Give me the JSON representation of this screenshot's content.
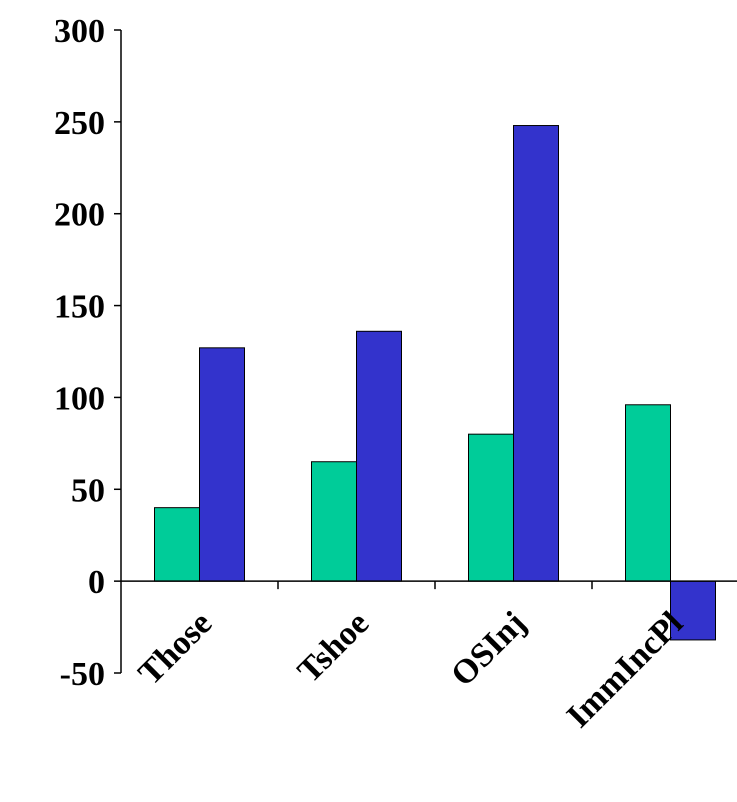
{
  "chart_data": {
    "type": "bar",
    "title": "",
    "xlabel": "",
    "ylabel": "",
    "categories": [
      "Those",
      "Tshoe",
      "OSInj",
      "ImmIncPl"
    ],
    "series": [
      {
        "color": "#00cc99",
        "values": [
          40,
          65,
          80,
          96
        ]
      },
      {
        "color": "#3333cc",
        "values": [
          127,
          136,
          248,
          -32
        ]
      }
    ],
    "ylim": [
      -50,
      300
    ],
    "yticks": [
      300,
      250,
      200,
      150,
      100,
      50,
      0,
      -50
    ],
    "legend": "none",
    "grid": false
  }
}
